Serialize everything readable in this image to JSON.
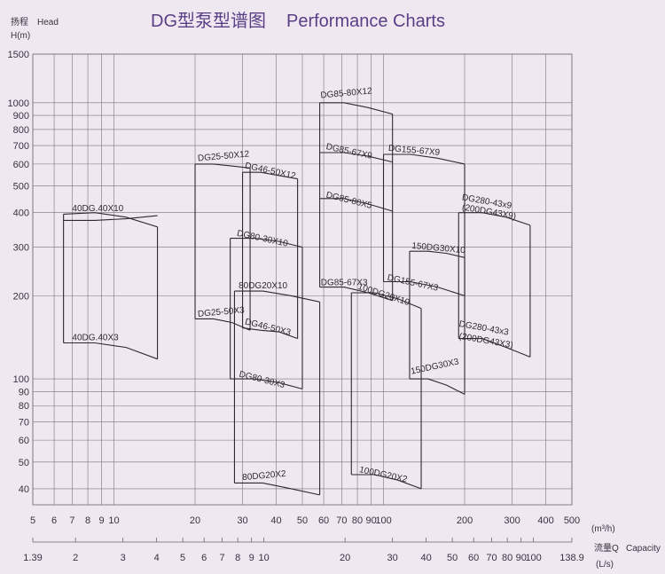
{
  "title_cn": "DG型泵型谱图",
  "title_en": "Performance Charts",
  "y_axis": {
    "label_cn": "扬程",
    "label_en": "Head",
    "unit": "H(m)"
  },
  "x_axis": {
    "label_cn": "流量Q",
    "label_en": "Capacity",
    "unit_m3h": "(m³/h)",
    "unit_ls": "(L/s)"
  },
  "chart_data": {
    "type": "line",
    "title": "DG型泵型谱图 Performance Charts",
    "ylabel": "H(m)",
    "xlabel": "流量Q Capacity",
    "y_scale": "log",
    "x_scale": "log",
    "ylim": [
      35,
      1500
    ],
    "xlim": [
      5,
      500
    ],
    "grid": true,
    "y_ticks": [
      1500,
      1000,
      900,
      800,
      700,
      600,
      500,
      400,
      300,
      200,
      100,
      90,
      80,
      70,
      60,
      50,
      40
    ],
    "x_ticks_m3h": [
      5,
      6,
      7,
      8,
      9,
      10,
      20,
      30,
      40,
      50,
      60,
      70,
      80,
      90,
      100,
      200,
      300,
      400,
      500
    ],
    "x_ticks_ls": [
      1.39,
      2,
      3,
      4,
      5,
      6,
      7,
      8,
      9,
      10,
      20,
      30,
      40,
      50,
      60,
      70,
      80,
      90,
      100,
      138.9
    ],
    "series": [
      {
        "name": "40DG.40X10",
        "q": [
          6.5,
          14.5
        ],
        "h": [
          [
            395,
            400,
            385,
            355
          ],
          [
            375,
            375,
            380,
            390
          ]
        ]
      },
      {
        "name": "40DG.40X3",
        "q": [
          6.5,
          14.5
        ],
        "h": [
          [
            135,
            135,
            130,
            118
          ]
        ]
      },
      {
        "name": "DG25-50X12",
        "q": [
          20,
          32
        ],
        "h": [
          [
            600,
            600,
            590,
            580
          ]
        ]
      },
      {
        "name": "DG25-50X3",
        "q": [
          20,
          32
        ],
        "h": [
          [
            165,
            165,
            160,
            150
          ]
        ]
      },
      {
        "name": "DG46-50X12",
        "q": [
          30,
          48
        ],
        "h": [
          [
            560,
            560,
            545,
            530
          ]
        ]
      },
      {
        "name": "DG46-50X3",
        "q": [
          30,
          48
        ],
        "h": [
          [
            153,
            150,
            148,
            140
          ]
        ]
      },
      {
        "name": "DG80-30X10",
        "q": [
          27,
          50
        ],
        "h": [
          [
            323,
            323,
            315,
            300
          ]
        ]
      },
      {
        "name": "DG80-30X3",
        "q": [
          27,
          50
        ],
        "h": [
          [
            100,
            100,
            97,
            92
          ]
        ]
      },
      {
        "name": "80DG20X10",
        "q": [
          28,
          58
        ],
        "h": [
          [
            208,
            208,
            200,
            190
          ]
        ]
      },
      {
        "name": "80DG20X2",
        "q": [
          28,
          58
        ],
        "h": [
          [
            42,
            42,
            40,
            38
          ]
        ]
      },
      {
        "name": "DG85-80X12",
        "q": [
          58,
          108
        ],
        "h": [
          [
            1000,
            1000,
            960,
            910
          ]
        ]
      },
      {
        "name": "DG85-67X9",
        "q": [
          58,
          108
        ],
        "h": [
          [
            660,
            660,
            640,
            610
          ]
        ]
      },
      {
        "name": "DG85-80X5",
        "q": [
          58,
          108
        ],
        "h": [
          [
            450,
            450,
            430,
            405
          ]
        ]
      },
      {
        "name": "DG85-67X3",
        "q": [
          58,
          108
        ],
        "h": [
          [
            215,
            215,
            205,
            192
          ]
        ]
      },
      {
        "name": "100DG20X10",
        "q": [
          76,
          138
        ],
        "h": [
          [
            205,
            205,
            195,
            180
          ]
        ]
      },
      {
        "name": "100DG20X2",
        "q": [
          76,
          138
        ],
        "h": [
          [
            45,
            45,
            43,
            40
          ]
        ]
      },
      {
        "name": "DG155-67X9",
        "q": [
          100,
          200
        ],
        "h": [
          [
            650,
            650,
            630,
            600
          ]
        ]
      },
      {
        "name": "DG155-67X3",
        "q": [
          100,
          200
        ],
        "h": [
          [
            225,
            225,
            215,
            200
          ]
        ]
      },
      {
        "name": "150DG30X10",
        "q": [
          125,
          200
        ],
        "h": [
          [
            290,
            290,
            285,
            275
          ]
        ]
      },
      {
        "name": "150DG30X3",
        "q": [
          125,
          200
        ],
        "h": [
          [
            100,
            100,
            95,
            88
          ]
        ]
      },
      {
        "name": "DG280-43x9 (200DG43X9)",
        "q": [
          190,
          350
        ],
        "h": [
          [
            400,
            400,
            385,
            360
          ]
        ]
      },
      {
        "name": "DG280-43x3 (200DG43X3)",
        "q": [
          190,
          350
        ],
        "h": [
          [
            140,
            140,
            130,
            120
          ]
        ]
      }
    ]
  },
  "curve_labels": [
    "40DG.40X10",
    "40DG.40X3",
    "DG25-50X12",
    "DG25-50X3",
    "DG46-50X12",
    "DG46-50X3",
    "DG80-30X10",
    "DG80-30X3",
    "80DG20X10",
    "80DG20X2",
    "DG85-80X12",
    "DG85-67X9",
    "DG85-80X5",
    "DG85-67X3",
    "100DG20X10",
    "100DG20X2",
    "DG155-67X9",
    "DG155-67X3",
    "150DG30X10",
    "150DG30X3",
    "DG280-43x9",
    "(200DG43X9)",
    "DG280-43x3",
    "(200DG43X3)"
  ]
}
